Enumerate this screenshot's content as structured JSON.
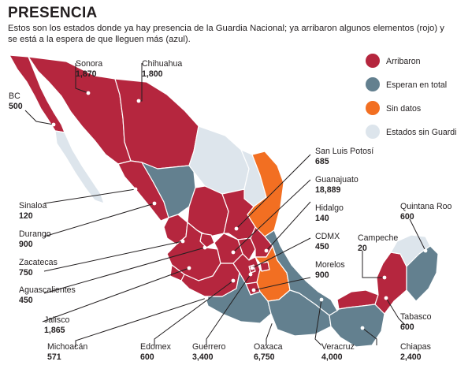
{
  "title": "PRESENCIA",
  "subtitle": "Estos son los estados donde ya hay presencia de la Guardia Nacional; ya arribaron algunos elementos (rojo) y se está a la espera de que lleguen más (azul).",
  "colors": {
    "arribaron": "#b5263e",
    "esperan": "#63808f",
    "sin_datos": "#f26f22",
    "sin_guardia": "#dde5ec"
  },
  "legend": [
    {
      "label": "Arribaron",
      "color": "#b5263e"
    },
    {
      "label": "Esperan en total",
      "color": "#63808f"
    },
    {
      "label": "Sin datos",
      "color": "#f26f22"
    },
    {
      "label": "Estados sin Guardia",
      "color": "#dde5ec"
    }
  ],
  "labels": {
    "bc": {
      "name": "BC",
      "value": "500"
    },
    "sonora": {
      "name": "Sonora",
      "value": "1,870"
    },
    "chihuahua": {
      "name": "Chihuahua",
      "value": "1,800"
    },
    "sinaloa": {
      "name": "Sinaloa",
      "value": "120"
    },
    "durango": {
      "name": "Durango",
      "value": "900"
    },
    "zacatecas": {
      "name": "Zacatecas",
      "value": "750"
    },
    "aguascalientes": {
      "name": "Aguascalientes",
      "value": "450"
    },
    "jalisco": {
      "name": "Jalisco",
      "value": "1,865"
    },
    "michoacan": {
      "name": "Michoacán",
      "value": "571"
    },
    "edomex": {
      "name": "Edomex",
      "value": "600"
    },
    "guerrero": {
      "name": "Guerrero",
      "value": "3,400"
    },
    "oaxaca": {
      "name": "Oaxaca",
      "value": "6,750"
    },
    "veracruz": {
      "name": "Veracruz",
      "value": "4,000"
    },
    "chiapas": {
      "name": "Chiapas",
      "value": "2,400"
    },
    "tabasco": {
      "name": "Tabasco",
      "value": "600"
    },
    "campeche": {
      "name": "Campeche",
      "value": "20"
    },
    "quintana_roo": {
      "name": "Quintana Roo",
      "value": "600"
    },
    "morelos": {
      "name": "Morelos",
      "value": "900"
    },
    "cdmx": {
      "name": "CDMX",
      "value": "450"
    },
    "hidalgo": {
      "name": "Hidalgo",
      "value": "140"
    },
    "guanajuato": {
      "name": "Guanajuato",
      "value": "18,889"
    },
    "san_luis_potosi": {
      "name": "San Luis Potosí",
      "value": "685"
    }
  }
}
